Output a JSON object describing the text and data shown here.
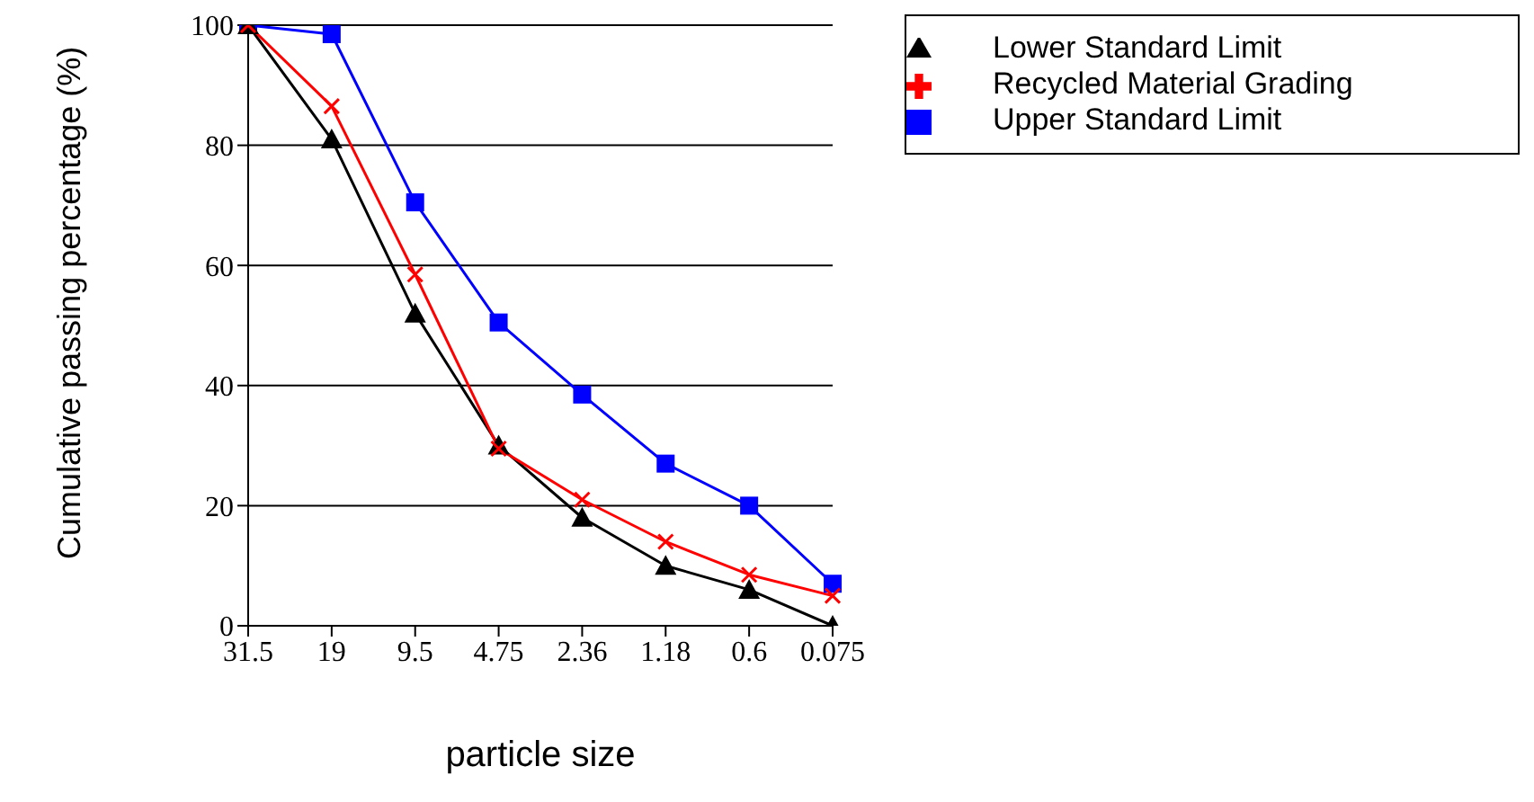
{
  "chart_data": {
    "type": "line",
    "xlabel": "particle size",
    "ylabel": "Cumulative passing percentage (%)",
    "categories": [
      "31.5",
      "19",
      "9.5",
      "4.75",
      "2.36",
      "1.18",
      "0.6",
      "0.075"
    ],
    "ylim": [
      0,
      100
    ],
    "yticks": [
      0,
      20,
      40,
      60,
      80,
      100
    ],
    "grid": "y",
    "legend": "top right",
    "line_style": "solid",
    "series": [
      {
        "name": "Upper Standard Limit",
        "color": "#0000ff",
        "marker": "square",
        "values": [
          100,
          98.5,
          70.5,
          50.5,
          38.5,
          27,
          20,
          7
        ]
      },
      {
        "name": "Lower Standard Limit",
        "color": "#000000",
        "marker": "triangle",
        "values": [
          100,
          81,
          52,
          30,
          18,
          10,
          6,
          0
        ]
      },
      {
        "name": "Recycled Material Grading",
        "color": "#ff0000",
        "marker": "cross",
        "values": [
          100,
          86.5,
          58.5,
          29.5,
          21,
          14,
          8.5,
          5
        ]
      }
    ]
  }
}
